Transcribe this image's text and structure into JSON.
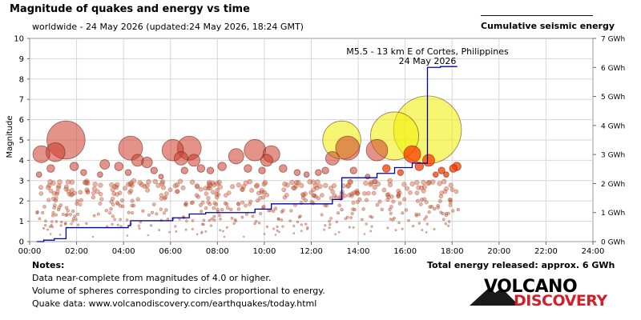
{
  "header": {
    "title": "Magnitude of quakes and energy vs time",
    "subtitle": "worldwide - 24 May 2026 (updated:24 May 2026, 18:24 GMT)"
  },
  "legend": {
    "label": "Cumulative seismic energy",
    "line_color": "#0000aa"
  },
  "notes": {
    "title": "Notes:",
    "lines": [
      "Data near-complete from magnitudes of 4.0 or higher.",
      "Volume of spheres corresponding to circles proportional to energy.",
      "Quake data: www.volcanodiscovery.com/earthquakes/today.html"
    ]
  },
  "total_energy": "Total energy released: approx. 6 GWh",
  "logo": {
    "line1": "VOLCANO",
    "line2": "DISCOVERY"
  },
  "chart_data": {
    "type": "scatter",
    "xlabel": "",
    "ylabel": "Magnitude",
    "y2label": "",
    "xlim": [
      0,
      24
    ],
    "ylim": [
      0,
      10
    ],
    "y2lim": [
      0,
      7
    ],
    "xticks": [
      "00:00",
      "02:00",
      "04:00",
      "06:00",
      "08:00",
      "10:00",
      "12:00",
      "14:00",
      "16:00",
      "18:00",
      "20:00",
      "22:00",
      "24:00"
    ],
    "yticks": [
      "0",
      "1",
      "2",
      "3",
      "4",
      "5",
      "6",
      "7",
      "8",
      "9",
      "10"
    ],
    "y2ticks": [
      "0 GWh",
      "1 GWh",
      "2 GWh",
      "3 GWh",
      "4 GWh",
      "5 GWh",
      "6 GWh",
      "7 GWh"
    ],
    "grid": true,
    "annotation": {
      "line1": "M5.5 - 13 km E of Cortes, Philippines",
      "line2": "24 May 2026",
      "x": 16.95,
      "y": 8.5
    },
    "colors": {
      "old": "#cc3b2a",
      "recent": "#ff3a00",
      "latest": "#f0ee00",
      "energy_line": "#0000aa",
      "plot_bg": "#ffffff"
    },
    "quakes": [
      {
        "t": 0.5,
        "m": 4.3,
        "c": "old"
      },
      {
        "t": 1.1,
        "m": 4.4,
        "c": "old"
      },
      {
        "t": 1.55,
        "m": 5.0,
        "c": "old"
      },
      {
        "t": 0.4,
        "m": 3.3,
        "c": "old"
      },
      {
        "t": 0.9,
        "m": 3.6,
        "c": "old"
      },
      {
        "t": 1.9,
        "m": 3.7,
        "c": "old"
      },
      {
        "t": 2.3,
        "m": 3.4,
        "c": "old"
      },
      {
        "t": 3.2,
        "m": 3.8,
        "c": "old"
      },
      {
        "t": 3.0,
        "m": 3.3,
        "c": "old"
      },
      {
        "t": 3.8,
        "m": 3.7,
        "c": "old"
      },
      {
        "t": 4.3,
        "m": 4.6,
        "c": "old"
      },
      {
        "t": 4.6,
        "m": 4.0,
        "c": "old"
      },
      {
        "t": 5.0,
        "m": 3.9,
        "c": "old"
      },
      {
        "t": 4.2,
        "m": 3.4,
        "c": "old"
      },
      {
        "t": 5.3,
        "m": 3.5,
        "c": "old"
      },
      {
        "t": 5.6,
        "m": 3.2,
        "c": "old"
      },
      {
        "t": 6.1,
        "m": 4.5,
        "c": "old"
      },
      {
        "t": 6.45,
        "m": 4.1,
        "c": "old"
      },
      {
        "t": 6.8,
        "m": 4.6,
        "c": "old"
      },
      {
        "t": 7.0,
        "m": 4.0,
        "c": "old"
      },
      {
        "t": 6.6,
        "m": 3.5,
        "c": "old"
      },
      {
        "t": 7.3,
        "m": 3.6,
        "c": "old"
      },
      {
        "t": 7.7,
        "m": 3.5,
        "c": "old"
      },
      {
        "t": 8.2,
        "m": 3.7,
        "c": "old"
      },
      {
        "t": 8.8,
        "m": 4.2,
        "c": "old"
      },
      {
        "t": 9.3,
        "m": 3.6,
        "c": "old"
      },
      {
        "t": 9.6,
        "m": 4.5,
        "c": "old"
      },
      {
        "t": 10.1,
        "m": 4.0,
        "c": "old"
      },
      {
        "t": 10.3,
        "m": 4.3,
        "c": "old"
      },
      {
        "t": 9.9,
        "m": 3.5,
        "c": "old"
      },
      {
        "t": 10.8,
        "m": 3.6,
        "c": "old"
      },
      {
        "t": 11.4,
        "m": 3.4,
        "c": "old"
      },
      {
        "t": 11.8,
        "m": 3.3,
        "c": "old"
      },
      {
        "t": 12.3,
        "m": 3.4,
        "c": "old"
      },
      {
        "t": 12.6,
        "m": 3.5,
        "c": "old"
      },
      {
        "t": 12.9,
        "m": 4.1,
        "c": "old"
      },
      {
        "t": 13.3,
        "m": 5.0,
        "c": "latest"
      },
      {
        "t": 13.55,
        "m": 4.6,
        "c": "old"
      },
      {
        "t": 13.8,
        "m": 3.5,
        "c": "old"
      },
      {
        "t": 14.4,
        "m": 3.2,
        "c": "old"
      },
      {
        "t": 14.8,
        "m": 4.5,
        "c": "old"
      },
      {
        "t": 15.2,
        "m": 3.6,
        "c": "recent"
      },
      {
        "t": 15.55,
        "m": 5.2,
        "c": "latest"
      },
      {
        "t": 15.8,
        "m": 3.4,
        "c": "recent"
      },
      {
        "t": 16.3,
        "m": 4.3,
        "c": "recent"
      },
      {
        "t": 16.6,
        "m": 3.7,
        "c": "recent"
      },
      {
        "t": 16.95,
        "m": 5.5,
        "c": "latest"
      },
      {
        "t": 17.0,
        "m": 4.0,
        "c": "recent"
      },
      {
        "t": 17.3,
        "m": 3.3,
        "c": "recent"
      },
      {
        "t": 17.55,
        "m": 3.5,
        "c": "recent"
      },
      {
        "t": 17.75,
        "m": 3.3,
        "c": "recent"
      },
      {
        "t": 18.05,
        "m": 3.6,
        "c": "recent"
      },
      {
        "t": 18.2,
        "m": 3.7,
        "c": "recent"
      }
    ],
    "energy_curve": [
      {
        "t": 0.3,
        "e": 0.0
      },
      {
        "t": 0.6,
        "e": 0.05
      },
      {
        "t": 1.05,
        "e": 0.1
      },
      {
        "t": 1.55,
        "e": 0.48
      },
      {
        "t": 4.2,
        "e": 0.55
      },
      {
        "t": 4.3,
        "e": 0.72
      },
      {
        "t": 6.1,
        "e": 0.82
      },
      {
        "t": 6.8,
        "e": 0.95
      },
      {
        "t": 7.5,
        "e": 1.0
      },
      {
        "t": 9.6,
        "e": 1.12
      },
      {
        "t": 10.3,
        "e": 1.3
      },
      {
        "t": 12.9,
        "e": 1.45
      },
      {
        "t": 13.3,
        "e": 2.2
      },
      {
        "t": 14.8,
        "e": 2.35
      },
      {
        "t": 15.55,
        "e": 2.55
      },
      {
        "t": 16.3,
        "e": 2.7
      },
      {
        "t": 16.95,
        "e": 2.9
      },
      {
        "t": 16.95,
        "e": 6.0
      },
      {
        "t": 17.5,
        "e": 6.03
      },
      {
        "t": 18.2,
        "e": 6.05
      }
    ]
  }
}
